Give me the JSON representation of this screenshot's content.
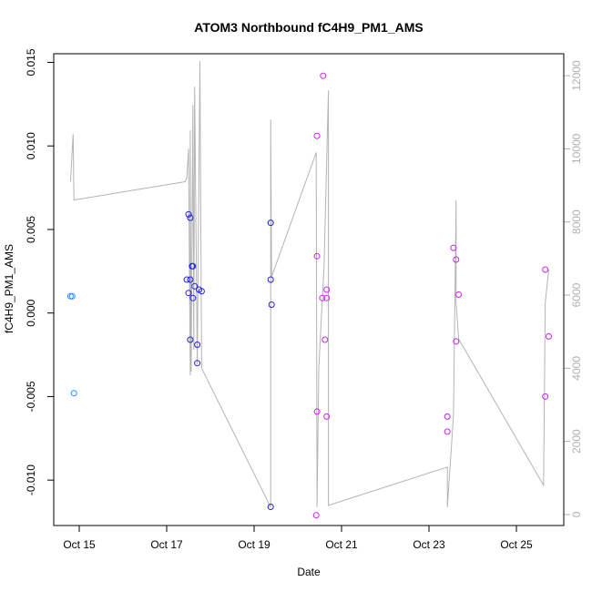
{
  "chart_data": {
    "type": "scatter",
    "title": "ATOM3 Northbound fC4H9_PM1_AMS",
    "xlabel": "Date",
    "ylabel": "fC4H9_PM1_AMS",
    "xlim": [
      "2016-10-14T12:00",
      "2016-10-26T00:00"
    ],
    "ylim": [
      -0.0125,
      0.0153
    ],
    "y2lim": [
      -200,
      12500
    ],
    "x_ticks": [
      {
        "date": "2016-10-15T00:00",
        "label": "Oct 15"
      },
      {
        "date": "2016-10-17T00:00",
        "label": "Oct 17"
      },
      {
        "date": "2016-10-19T00:00",
        "label": "Oct 19"
      },
      {
        "date": "2016-10-21T00:00",
        "label": "Oct 21"
      },
      {
        "date": "2016-10-23T00:00",
        "label": "Oct 23"
      },
      {
        "date": "2016-10-25T00:00",
        "label": "Oct 25"
      }
    ],
    "y_ticks": [
      {
        "value": -0.01,
        "label": "-0.010"
      },
      {
        "value": -0.005,
        "label": "-0.005"
      },
      {
        "value": 0.0,
        "label": "0.000"
      },
      {
        "value": 0.005,
        "label": "0.005"
      },
      {
        "value": 0.01,
        "label": "0.010"
      },
      {
        "value": 0.015,
        "label": "0.015"
      }
    ],
    "y2_ticks": [
      {
        "value": 0,
        "label": "0"
      },
      {
        "value": 2000,
        "label": "2000"
      },
      {
        "value": 4000,
        "label": "4000"
      },
      {
        "value": 6000,
        "label": "6000"
      },
      {
        "value": 8000,
        "label": "8000"
      },
      {
        "value": 10000,
        "label": "10000"
      },
      {
        "value": 12000,
        "label": "12000"
      }
    ],
    "grid": false,
    "legend": "none",
    "colors": {
      "axis": "#000000",
      "secondary_axis": "#b0b0b0",
      "secondary_line": "#b4b4b4"
    },
    "series": [
      {
        "type": "scatter",
        "color": "#1e90ff",
        "points": [
          {
            "x": "2016-10-14T19:12",
            "y": 0.001
          },
          {
            "x": "2016-10-14T20:09",
            "y": 0.001
          },
          {
            "x": "2016-10-14T21:07",
            "y": -0.0048
          }
        ]
      },
      {
        "type": "scatter",
        "color": "#2222dd",
        "points": [
          {
            "x": "2016-10-17T11:02",
            "y": 0.002
          },
          {
            "x": "2016-10-17T12:00",
            "y": 0.0059
          },
          {
            "x": "2016-10-17T12:00",
            "y": 0.0012
          },
          {
            "x": "2016-10-17T12:58",
            "y": 0.0057
          },
          {
            "x": "2016-10-17T12:58",
            "y": 0.002
          },
          {
            "x": "2016-10-17T12:58",
            "y": -0.0016
          },
          {
            "x": "2016-10-17T13:55",
            "y": 0.0028
          },
          {
            "x": "2016-10-17T14:24",
            "y": 0.0028
          },
          {
            "x": "2016-10-17T14:24",
            "y": 0.0009
          },
          {
            "x": "2016-10-17T15:22",
            "y": 0.0016
          },
          {
            "x": "2016-10-17T16:48",
            "y": -0.0019
          },
          {
            "x": "2016-10-17T16:48",
            "y": -0.003
          },
          {
            "x": "2016-10-17T17:46",
            "y": 0.0014
          },
          {
            "x": "2016-10-17T19:12",
            "y": 0.0013
          },
          {
            "x": "2016-10-19T09:07",
            "y": -0.0116
          },
          {
            "x": "2016-10-19T09:07",
            "y": 0.0054
          },
          {
            "x": "2016-10-19T09:07",
            "y": 0.002
          },
          {
            "x": "2016-10-19T09:36",
            "y": 0.0005
          }
        ]
      },
      {
        "type": "scatter",
        "color": "#cc22ee",
        "points": [
          {
            "x": "2016-10-20T10:05",
            "y": -0.0121
          },
          {
            "x": "2016-10-20T10:34",
            "y": 0.0106
          },
          {
            "x": "2016-10-20T10:34",
            "y": 0.0034
          },
          {
            "x": "2016-10-20T10:34",
            "y": -0.0059
          },
          {
            "x": "2016-10-20T13:55",
            "y": 0.0142
          },
          {
            "x": "2016-10-20T13:26",
            "y": 0.0009
          },
          {
            "x": "2016-10-20T14:53",
            "y": -0.0016
          },
          {
            "x": "2016-10-20T15:50",
            "y": 0.0014
          },
          {
            "x": "2016-10-20T15:50",
            "y": 0.0009
          },
          {
            "x": "2016-10-20T15:50",
            "y": -0.0062
          },
          {
            "x": "2016-10-23T10:05",
            "y": -0.0062
          },
          {
            "x": "2016-10-23T10:05",
            "y": -0.0071
          },
          {
            "x": "2016-10-23T13:26",
            "y": 0.0039
          },
          {
            "x": "2016-10-23T14:53",
            "y": 0.0032
          },
          {
            "x": "2016-10-23T14:53",
            "y": -0.0017
          },
          {
            "x": "2016-10-23T16:19",
            "y": 0.0011
          },
          {
            "x": "2016-10-25T15:50",
            "y": 0.0026
          },
          {
            "x": "2016-10-25T15:50",
            "y": -0.005
          },
          {
            "x": "2016-10-25T17:46",
            "y": -0.0014
          }
        ]
      },
      {
        "type": "line",
        "axis": "right",
        "color": "#b4b4b4",
        "points": [
          {
            "x": "2016-10-14T19:12",
            "y": 9100
          },
          {
            "x": "2016-10-14T20:38",
            "y": 10400
          },
          {
            "x": "2016-10-14T21:07",
            "y": 8600
          },
          {
            "x": "2016-10-17T10:05",
            "y": 9100
          },
          {
            "x": "2016-10-17T11:02",
            "y": 9200
          },
          {
            "x": "2016-10-17T12:00",
            "y": 10000
          },
          {
            "x": "2016-10-17T12:58",
            "y": 3800
          },
          {
            "x": "2016-10-17T12:58",
            "y": 10500
          },
          {
            "x": "2016-10-17T13:26",
            "y": 3900
          },
          {
            "x": "2016-10-17T14:24",
            "y": 11200
          },
          {
            "x": "2016-10-17T14:53",
            "y": 4500
          },
          {
            "x": "2016-10-17T15:22",
            "y": 11700
          },
          {
            "x": "2016-10-17T16:48",
            "y": 4100
          },
          {
            "x": "2016-10-17T18:14",
            "y": 12400
          },
          {
            "x": "2016-10-17T19:12",
            "y": 4000
          },
          {
            "x": "2016-10-19T09:07",
            "y": 200
          },
          {
            "x": "2016-10-19T09:07",
            "y": 10800
          },
          {
            "x": "2016-10-19T09:36",
            "y": 6500
          },
          {
            "x": "2016-10-20T10:05",
            "y": 9900
          },
          {
            "x": "2016-10-20T10:34",
            "y": 200
          },
          {
            "x": "2016-10-20T11:31",
            "y": 4000
          },
          {
            "x": "2016-10-20T14:24",
            "y": 6800
          },
          {
            "x": "2016-10-20T16:48",
            "y": 11600
          },
          {
            "x": "2016-10-20T16:48",
            "y": 250
          },
          {
            "x": "2016-10-23T10:05",
            "y": 1300
          },
          {
            "x": "2016-10-23T10:05",
            "y": 200
          },
          {
            "x": "2016-10-23T13:26",
            "y": 2700
          },
          {
            "x": "2016-10-23T14:53",
            "y": 8600
          },
          {
            "x": "2016-10-23T14:53",
            "y": 5800
          },
          {
            "x": "2016-10-23T16:19",
            "y": 4800
          },
          {
            "x": "2016-10-25T14:53",
            "y": 800
          },
          {
            "x": "2016-10-25T15:50",
            "y": 5800
          },
          {
            "x": "2016-10-25T17:46",
            "y": 6700
          }
        ]
      }
    ]
  }
}
